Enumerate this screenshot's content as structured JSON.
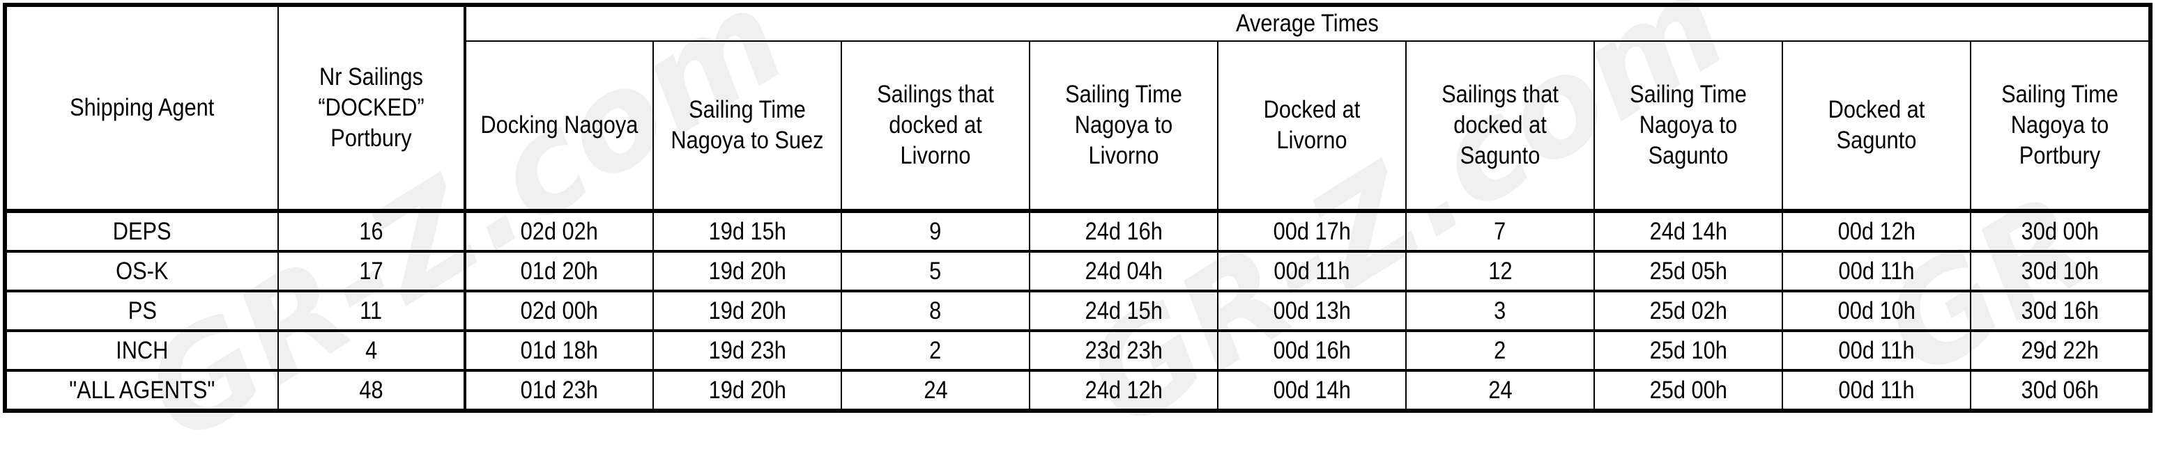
{
  "watermark": "GR-Z.com",
  "table": {
    "group_header": "Average Times",
    "headers": [
      "Shipping Agent",
      "Nr Sailings “DOCKED” Portbury",
      "Docking Nagoya",
      "Sailing Time Nagoya to Suez",
      "Sailings that docked at Livorno",
      "Sailing Time Nagoya to Livorno",
      "Docked at Livorno",
      "Sailings that docked at Sagunto",
      "Sailing Time Nagoya to Sagunto",
      "Docked at Sagunto",
      "Sailing Time Nagoya to Portbury"
    ],
    "rows": [
      [
        "DEPS",
        "16",
        "02d 02h",
        "19d 15h",
        "9",
        "24d 16h",
        "00d 17h",
        "7",
        "24d 14h",
        "00d 12h",
        "30d 00h"
      ],
      [
        "OS-K",
        "17",
        "01d 20h",
        "19d 20h",
        "5",
        "24d 04h",
        "00d 11h",
        "12",
        "25d 05h",
        "00d 11h",
        "30d 10h"
      ],
      [
        "PS",
        "11",
        "02d 00h",
        "19d 20h",
        "8",
        "24d 15h",
        "00d 13h",
        "3",
        "25d 02h",
        "00d 10h",
        "30d 16h"
      ],
      [
        "INCH",
        "4",
        "01d 18h",
        "19d 23h",
        "2",
        "23d 23h",
        "00d 16h",
        "2",
        "25d 10h",
        "00d 11h",
        "29d 22h"
      ],
      [
        "\"ALL AGENTS\"",
        "48",
        "01d 23h",
        "19d 20h",
        "24",
        "24d 12h",
        "00d 14h",
        "24",
        "25d 00h",
        "00d 11h",
        "30d 06h"
      ]
    ]
  }
}
